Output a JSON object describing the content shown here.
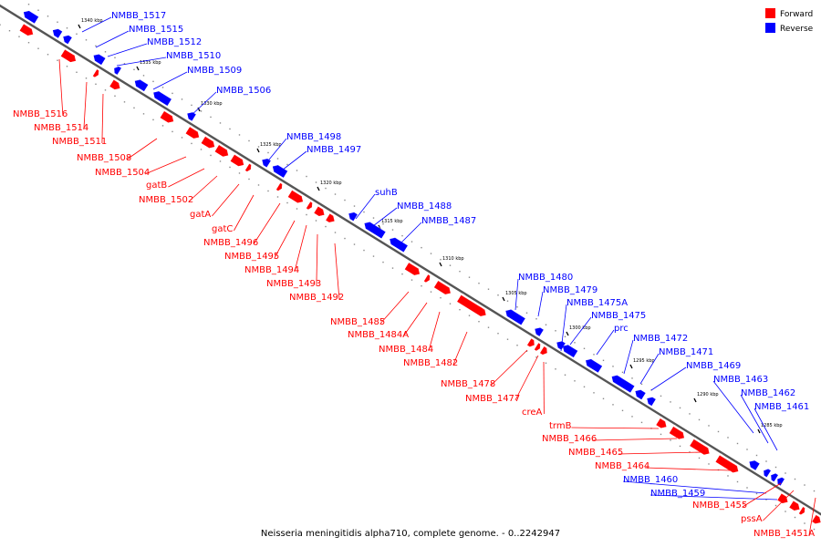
{
  "caption": "Neisseria meningitidis alpha710, complete genome. - 0..2242947",
  "colors": {
    "forward": "#ff0000",
    "reverse": "#0000ff",
    "backbone": "#555555"
  },
  "legend": {
    "forward": "Forward",
    "reverse": "Reverse"
  },
  "ticks": [
    "1340 kbp",
    "1335 kbp",
    "1330 kbp",
    "1325 kbp",
    "1320 kbp",
    "1315 kbp",
    "1310 kbp",
    "1305 kbp",
    "1300 kbp",
    "1295 kbp",
    "1290 kbp",
    "1285 kbp"
  ],
  "reverse_genes": [
    "NMBB_1517",
    "NMBB_1515",
    "NMBB_1512",
    "NMBB_1510",
    "NMBB_1509",
    "NMBB_1506",
    "NMBB_1498",
    "NMBB_1497",
    "suhB",
    "NMBB_1488",
    "NMBB_1487",
    "NMBB_1480",
    "NMBB_1479",
    "NMBB_1475A",
    "NMBB_1475",
    "prc",
    "NMBB_1472",
    "NMBB_1471",
    "NMBB_1469",
    "NMBB_1463",
    "NMBB_1462",
    "NMBB_1461",
    "NMBB_1460",
    "NMBB_1459"
  ],
  "forward_genes": [
    "NMBB_1516",
    "NMBB_1514",
    "NMBB_1511",
    "NMBB_1508",
    "NMBB_1504",
    "gatB",
    "NMBB_1502",
    "gatA",
    "gatC",
    "NMBB_1496",
    "NMBB_1495",
    "NMBB_1494",
    "NMBB_1493",
    "NMBB_1492",
    "NMBB_1485",
    "NMBB_1484A",
    "NMBB_1484",
    "NMBB_1482",
    "NMBB_1478",
    "NMBB_1477",
    "creA",
    "trmB",
    "NMBB_1466",
    "NMBB_1465",
    "NMBB_1464",
    "NMBB_1455",
    "pssA",
    "NMBB_1451A"
  ]
}
